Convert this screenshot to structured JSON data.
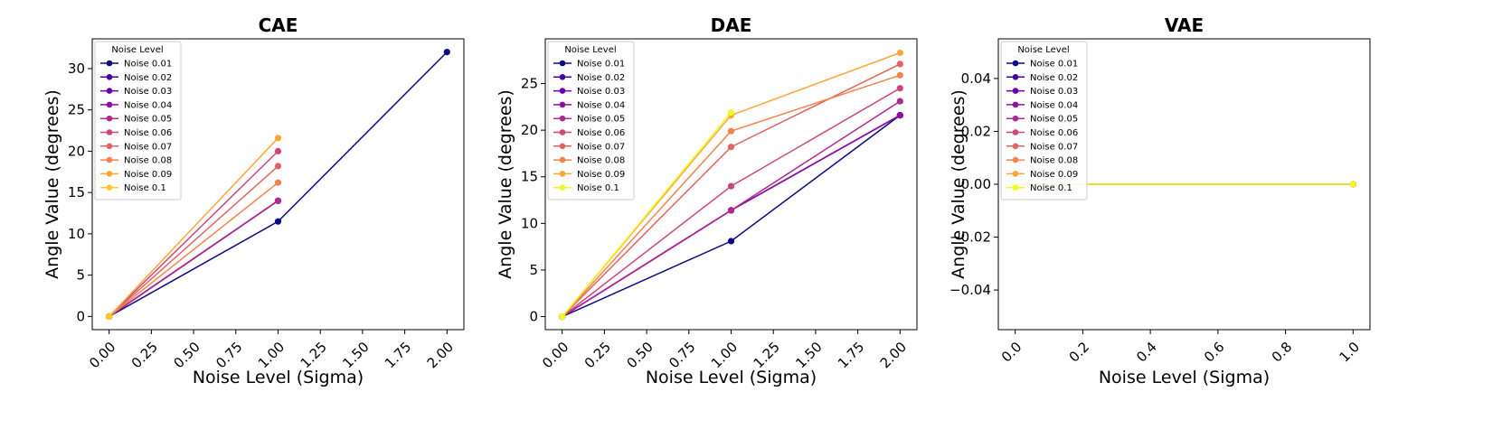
{
  "chart_data": [
    {
      "type": "line",
      "title": "CAE",
      "xlabel": "Noise Level (Sigma)",
      "ylabel": "Angle Value (degrees)",
      "xlim": [
        -0.1,
        2.1
      ],
      "ylim": [
        -1.6,
        33.6
      ],
      "xticks": [
        0,
        0.25,
        0.5,
        0.75,
        1,
        1.25,
        1.5,
        1.75,
        2
      ],
      "xtick_labels": [
        "0.00",
        "0.25",
        "0.50",
        "0.75",
        "1.00",
        "1.25",
        "1.50",
        "1.75",
        "2.00"
      ],
      "yticks": [
        0,
        5,
        10,
        15,
        20,
        25,
        30
      ],
      "ytick_labels": [
        "0",
        "5",
        "10",
        "15",
        "20",
        "25",
        "30"
      ],
      "legend": {
        "title": "Noise Level",
        "location": "upper-left"
      },
      "series": [
        {
          "name": "Noise 0.01",
          "color": "#0d0887",
          "x": [
            0,
            1,
            2
          ],
          "y": [
            0,
            11.5,
            32
          ]
        },
        {
          "name": "Noise 0.02",
          "color": "#41049d",
          "x": [
            0,
            1
          ],
          "y": [
            0,
            14
          ]
        },
        {
          "name": "Noise 0.03",
          "color": "#6a00a8",
          "x": [
            0,
            1
          ],
          "y": [
            0,
            14
          ]
        },
        {
          "name": "Noise 0.04",
          "color": "#8f0da4",
          "x": [
            0,
            1
          ],
          "y": [
            0,
            14
          ]
        },
        {
          "name": "Noise 0.05",
          "color": "#b12a90",
          "x": [
            0,
            1
          ],
          "y": [
            0,
            14
          ]
        },
        {
          "name": "Noise 0.06",
          "color": "#cc4778",
          "x": [
            0,
            1
          ],
          "y": [
            0,
            20
          ]
        },
        {
          "name": "Noise 0.07",
          "color": "#e16462",
          "x": [
            0,
            1
          ],
          "y": [
            0,
            18.2
          ]
        },
        {
          "name": "Noise 0.08",
          "color": "#f2844b",
          "x": [
            0,
            1
          ],
          "y": [
            0,
            16.2
          ]
        },
        {
          "name": "Noise 0.09",
          "color": "#fca636",
          "x": [
            0,
            1
          ],
          "y": [
            0,
            21.6
          ]
        },
        {
          "name": "Noise 0.1",
          "color": "#fcce25",
          "x": [
            0
          ],
          "y": [
            0
          ]
        }
      ]
    },
    {
      "type": "line",
      "title": "DAE",
      "xlabel": "Noise Level (Sigma)",
      "ylabel": "Angle Value (degrees)",
      "xlim": [
        -0.1,
        2.1
      ],
      "ylim": [
        -1.4,
        29.8
      ],
      "xticks": [
        0,
        0.25,
        0.5,
        0.75,
        1,
        1.25,
        1.5,
        1.75,
        2
      ],
      "xtick_labels": [
        "0.00",
        "0.25",
        "0.50",
        "0.75",
        "1.00",
        "1.25",
        "1.50",
        "1.75",
        "2.00"
      ],
      "yticks": [
        0,
        5,
        10,
        15,
        20,
        25
      ],
      "ytick_labels": [
        "0",
        "5",
        "10",
        "15",
        "20",
        "25"
      ],
      "legend": {
        "title": "Noise Level",
        "location": "upper-left"
      },
      "series": [
        {
          "name": "Noise 0.01",
          "color": "#0d0887",
          "x": [
            0,
            1,
            2
          ],
          "y": [
            0,
            8.1,
            21.6
          ]
        },
        {
          "name": "Noise 0.02",
          "color": "#41049d",
          "x": [
            0,
            1,
            2
          ],
          "y": [
            0,
            11.4,
            21.6
          ]
        },
        {
          "name": "Noise 0.03",
          "color": "#6a00a8",
          "x": [
            0,
            1,
            2
          ],
          "y": [
            0,
            11.4,
            21.6
          ]
        },
        {
          "name": "Noise 0.04",
          "color": "#8f0da4",
          "x": [
            0,
            1,
            2
          ],
          "y": [
            0,
            11.4,
            21.6
          ]
        },
        {
          "name": "Noise 0.05",
          "color": "#b12a90",
          "x": [
            0,
            1,
            2
          ],
          "y": [
            0,
            11.4,
            23.1
          ]
        },
        {
          "name": "Noise 0.06",
          "color": "#cc4778",
          "x": [
            0,
            1,
            2
          ],
          "y": [
            0,
            14,
            24.5
          ]
        },
        {
          "name": "Noise 0.07",
          "color": "#e16462",
          "x": [
            0,
            1,
            2
          ],
          "y": [
            0,
            18.2,
            27.1
          ]
        },
        {
          "name": "Noise 0.08",
          "color": "#f2844b",
          "x": [
            0,
            1,
            2
          ],
          "y": [
            0,
            19.9,
            25.9
          ]
        },
        {
          "name": "Noise 0.09",
          "color": "#fca636",
          "x": [
            0,
            1,
            2
          ],
          "y": [
            0,
            21.6,
            28.3
          ]
        },
        {
          "name": "Noise 0.1",
          "color": "#f0f921",
          "x": [
            0,
            1
          ],
          "y": [
            0,
            21.9
          ]
        }
      ]
    },
    {
      "type": "line",
      "title": "VAE",
      "xlabel": "Noise Level (Sigma)",
      "ylabel": "Angle Value (degrees)",
      "xlim": [
        -0.05,
        1.05
      ],
      "ylim": [
        -0.055,
        0.055
      ],
      "xticks": [
        0,
        0.2,
        0.4,
        0.6,
        0.8,
        1
      ],
      "xtick_labels": [
        "0.0",
        "0.2",
        "0.4",
        "0.6",
        "0.8",
        "1.0"
      ],
      "yticks": [
        -0.04,
        -0.02,
        0,
        0.02,
        0.04
      ],
      "ytick_labels": [
        "−0.04",
        "−0.02",
        "0.00",
        "0.02",
        "0.04"
      ],
      "legend": {
        "title": "Noise Level",
        "location": "upper-left"
      },
      "series": [
        {
          "name": "Noise 0.01",
          "color": "#0d0887",
          "x": [
            0,
            1
          ],
          "y": [
            0,
            0
          ]
        },
        {
          "name": "Noise 0.02",
          "color": "#41049d",
          "x": [
            0,
            1
          ],
          "y": [
            0,
            0
          ]
        },
        {
          "name": "Noise 0.03",
          "color": "#6a00a8",
          "x": [
            0,
            1
          ],
          "y": [
            0,
            0
          ]
        },
        {
          "name": "Noise 0.04",
          "color": "#8f0da4",
          "x": [
            0,
            1
          ],
          "y": [
            0,
            0
          ]
        },
        {
          "name": "Noise 0.05",
          "color": "#b12a90",
          "x": [
            0,
            1
          ],
          "y": [
            0,
            0
          ]
        },
        {
          "name": "Noise 0.06",
          "color": "#cc4778",
          "x": [
            0,
            1
          ],
          "y": [
            0,
            0
          ]
        },
        {
          "name": "Noise 0.07",
          "color": "#e16462",
          "x": [
            0,
            1
          ],
          "y": [
            0,
            0
          ]
        },
        {
          "name": "Noise 0.08",
          "color": "#f2844b",
          "x": [
            0,
            1
          ],
          "y": [
            0,
            0
          ]
        },
        {
          "name": "Noise 0.09",
          "color": "#fca636",
          "x": [
            0,
            1
          ],
          "y": [
            0,
            0
          ]
        },
        {
          "name": "Noise 0.1",
          "color": "#f0f921",
          "x": [
            0,
            1
          ],
          "y": [
            0,
            0
          ]
        }
      ]
    }
  ]
}
